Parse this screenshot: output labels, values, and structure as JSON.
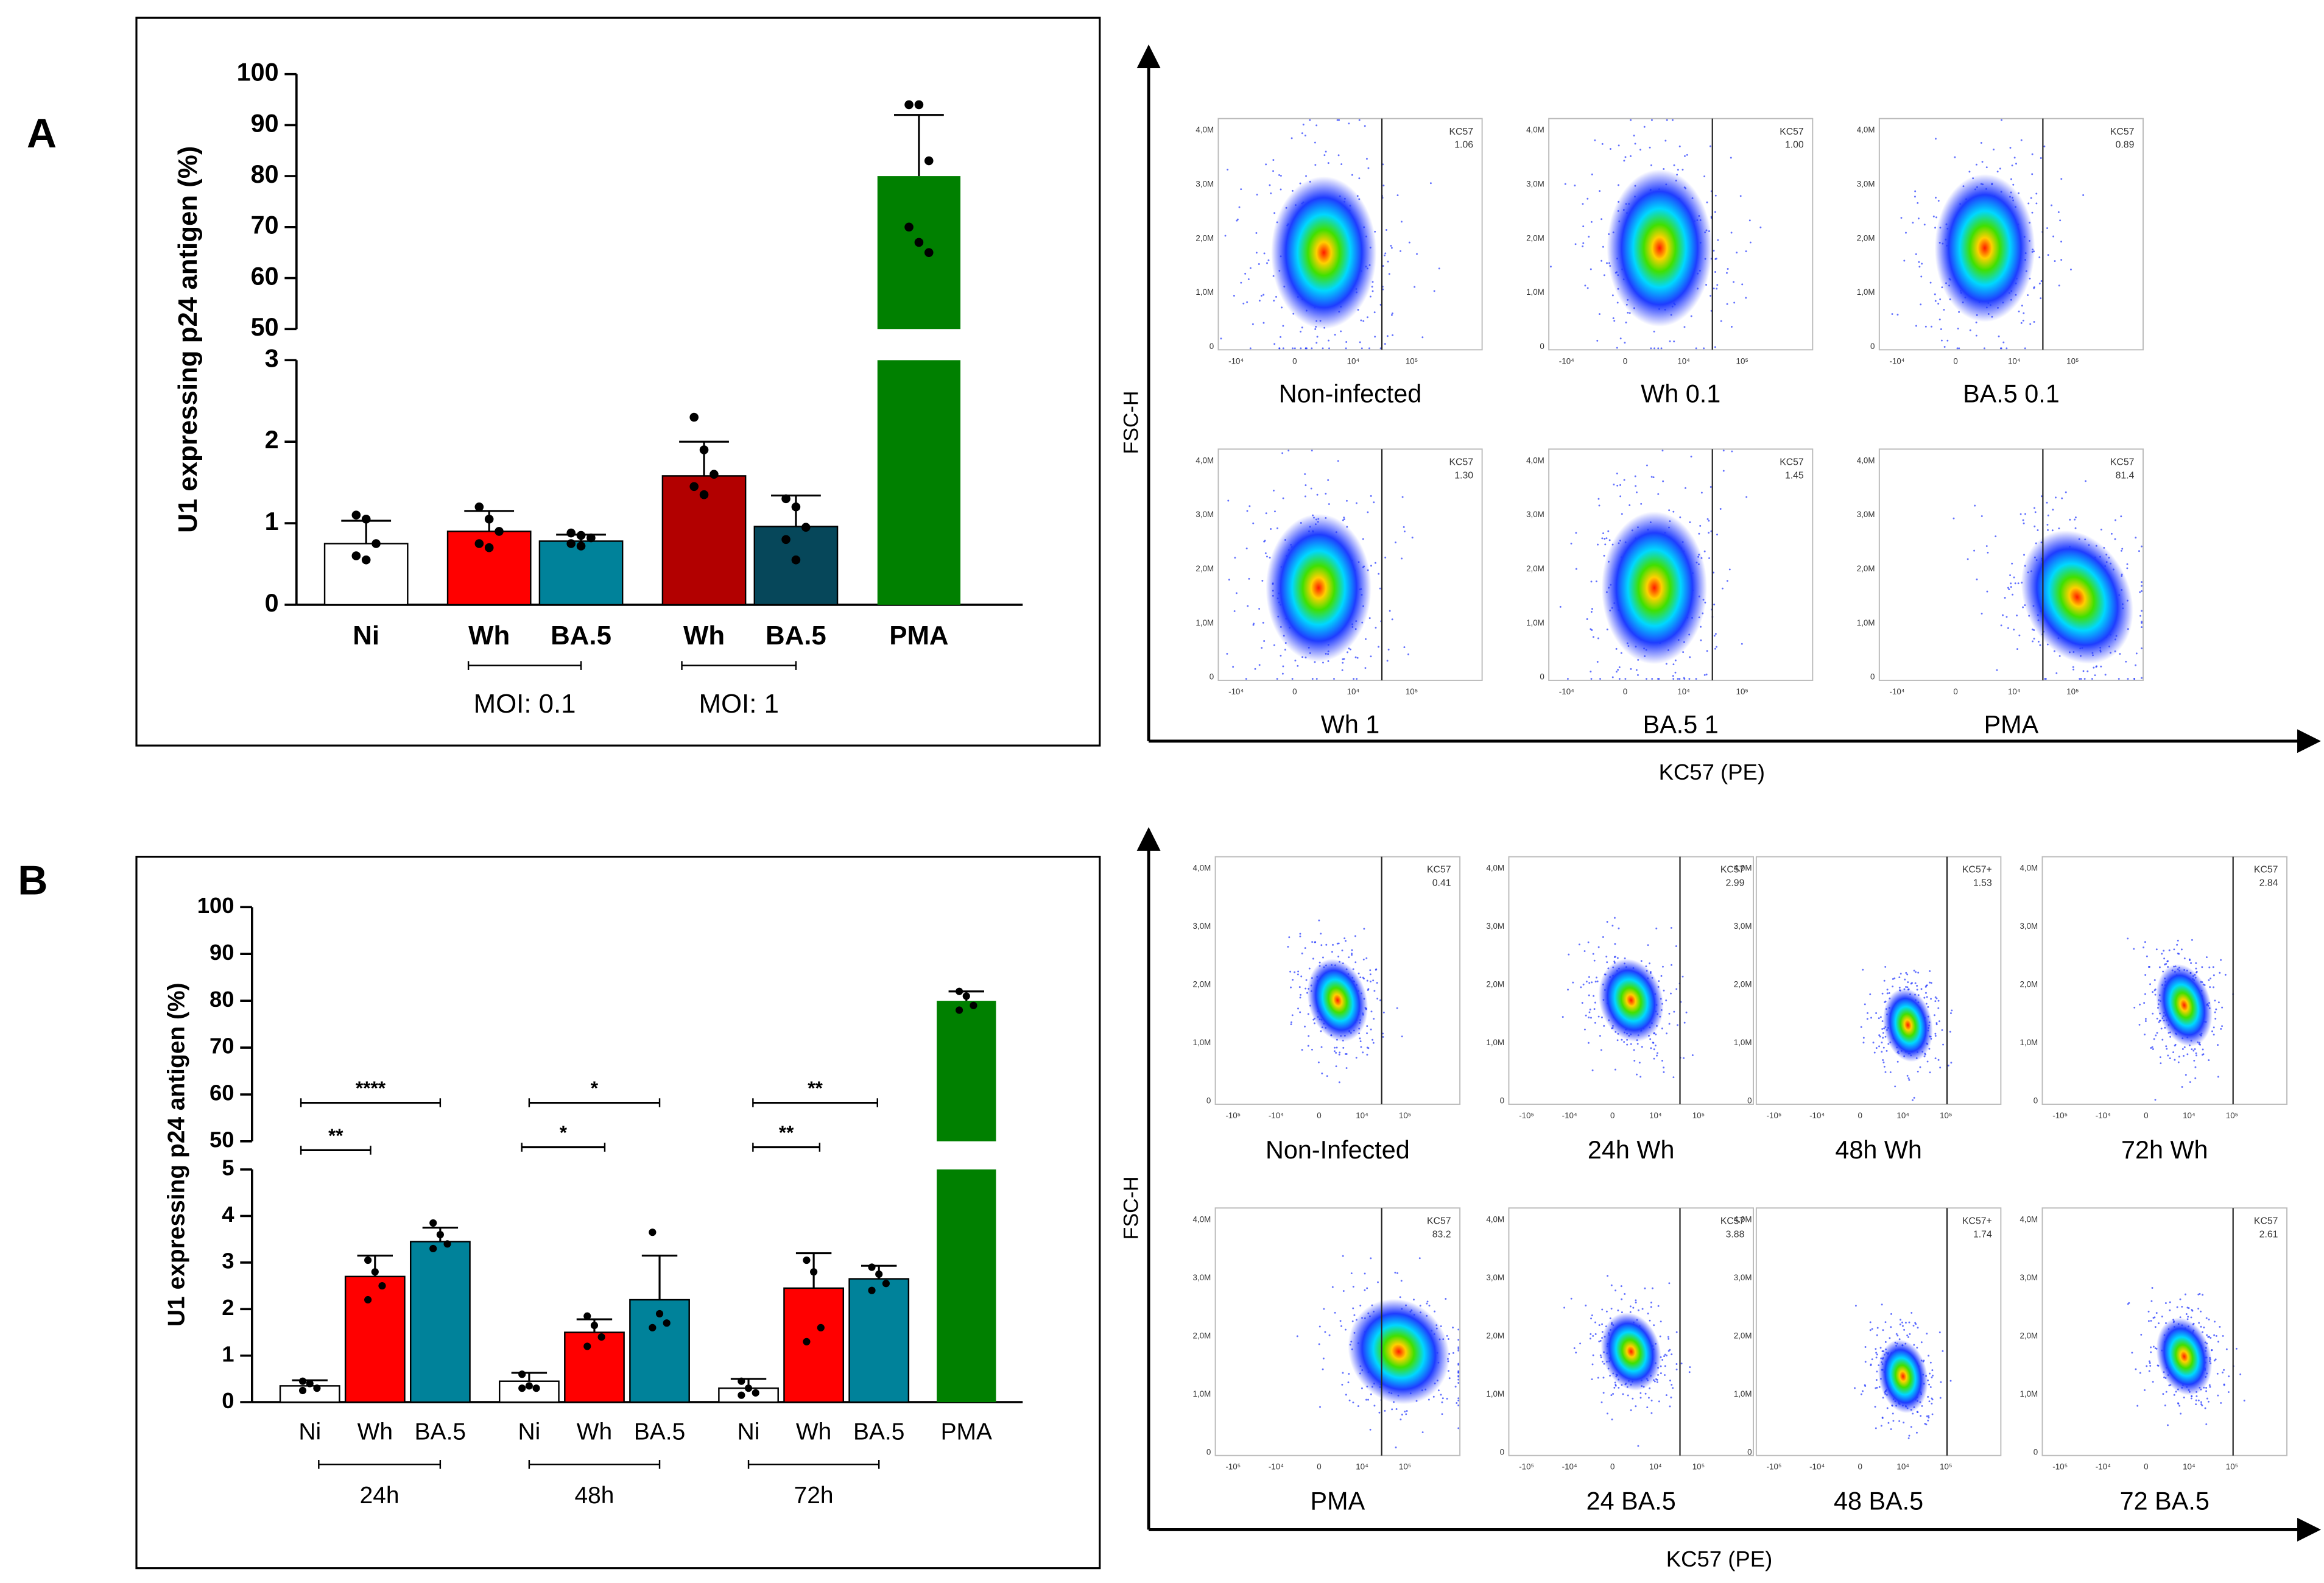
{
  "panel_labels": [
    "A",
    "B"
  ],
  "chart_data": [
    {
      "type": "bar",
      "y_label": "U1 expressing p24 antigen (%)",
      "categories": [
        "Ni",
        "Wh",
        "BA.5",
        "Wh",
        "BA.5",
        "PMA"
      ],
      "values": [
        0.75,
        0.9,
        0.78,
        1.58,
        0.96,
        80
      ],
      "errors": [
        0.28,
        0.25,
        0.08,
        0.42,
        0.38,
        12
      ],
      "points": [
        [
          1.1,
          1.05,
          0.75,
          0.6,
          0.55
        ],
        [
          1.2,
          1.05,
          0.9,
          0.75,
          0.7
        ],
        [
          0.88,
          0.85,
          0.82,
          0.75,
          0.72
        ],
        [
          2.3,
          1.9,
          1.6,
          1.45,
          1.35
        ],
        [
          1.3,
          1.2,
          0.95,
          0.8,
          0.55
        ],
        [
          94,
          94,
          83,
          70,
          67,
          65
        ]
      ],
      "colors": [
        "#ffffff",
        "#ff0000",
        "#00829a",
        "#b20000",
        "#06475a",
        "#008000"
      ],
      "groups": [
        "MOI: 0.1",
        "MOI: 1"
      ],
      "ylim_lower": [
        0,
        3
      ],
      "yticks_lower": [
        0,
        1,
        2,
        3
      ],
      "ylim_upper": [
        50,
        100
      ],
      "yticks_upper": [
        50,
        60,
        70,
        80,
        90,
        100
      ]
    },
    {
      "type": "bar",
      "y_label": "U1 expressing p24 antigen (%)",
      "categories": [
        "Ni",
        "Wh",
        "BA.5",
        "Ni",
        "Wh",
        "BA.5",
        "Ni",
        "Wh",
        "BA.5",
        "PMA"
      ],
      "values": [
        0.35,
        2.7,
        3.45,
        0.45,
        1.5,
        2.2,
        0.3,
        2.45,
        2.65,
        80
      ],
      "errors": [
        0.12,
        0.45,
        0.3,
        0.18,
        0.28,
        0.95,
        0.2,
        0.75,
        0.28,
        2
      ],
      "points": [
        [
          0.45,
          0.4,
          0.3,
          0.25
        ],
        [
          3.05,
          2.8,
          2.5,
          2.2
        ],
        [
          3.85,
          3.6,
          3.4,
          3.3
        ],
        [
          0.6,
          0.35,
          0.3,
          0.3
        ],
        [
          1.85,
          1.65,
          1.4,
          1.2
        ],
        [
          3.65,
          1.9,
          1.7,
          1.6
        ],
        [
          0.45,
          0.3,
          0.2,
          0.15
        ],
        [
          3.05,
          2.8,
          1.6,
          1.3
        ],
        [
          2.9,
          2.75,
          2.55,
          2.4
        ],
        [
          82,
          81,
          79,
          78
        ]
      ],
      "colors": [
        "#ffffff",
        "#ff0000",
        "#00829a",
        "#ffffff",
        "#ff0000",
        "#00829a",
        "#ffffff",
        "#ff0000",
        "#00829a",
        "#008000"
      ],
      "groups": [
        "24h",
        "48h",
        "72h"
      ],
      "significance": [
        "****",
        "**",
        "*",
        "*",
        "**",
        "**"
      ],
      "ylim_lower": [
        0,
        5
      ],
      "yticks_lower": [
        0,
        1,
        2,
        3,
        4,
        5
      ],
      "ylim_upper": [
        50,
        100
      ],
      "yticks_upper": [
        50,
        60,
        70,
        80,
        90,
        100
      ]
    }
  ],
  "flow_a": {
    "x_label": "KC57 (PE)",
    "y_label": "FSC-H",
    "yticks": [
      "4,0M",
      "3,0M",
      "2,0M",
      "1,0M",
      "0"
    ],
    "xticks": [
      "-10⁴",
      "0",
      "10⁴",
      "10⁵"
    ],
    "plots": [
      {
        "gate": "KC57",
        "value": "1.06",
        "label": "Non-infected"
      },
      {
        "gate": "KC57",
        "value": "1.00",
        "label": "Wh 0.1"
      },
      {
        "gate": "KC57",
        "value": "0.89",
        "label": "BA.5 0.1"
      },
      {
        "gate": "KC57",
        "value": "1.30",
        "label": "Wh 1"
      },
      {
        "gate": "KC57",
        "value": "1.45",
        "label": "BA.5 1"
      },
      {
        "gate": "KC57",
        "value": "81.4",
        "label": "PMA"
      }
    ]
  },
  "flow_b": {
    "x_label": "KC57 (PE)",
    "y_label": "FSC-H",
    "yticks": [
      "4,0M",
      "3,0M",
      "2,0M",
      "1,0M",
      "0"
    ],
    "xticks": [
      "-10⁵",
      "-10⁴",
      "0",
      "10⁴",
      "10⁵"
    ],
    "plots": [
      {
        "gate": "KC57",
        "value": "0.41",
        "label": "Non-Infected"
      },
      {
        "gate": "KC57",
        "value": "2.99",
        "label": "24h Wh"
      },
      {
        "gate": "KC57+",
        "value": "1.53",
        "label": "48h Wh"
      },
      {
        "gate": "KC57",
        "value": "2.84",
        "label": "72h Wh"
      },
      {
        "gate": "KC57",
        "value": "83.2",
        "label": "PMA"
      },
      {
        "gate": "KC57",
        "value": "3.88",
        "label": "24 BA.5"
      },
      {
        "gate": "KC57+",
        "value": "1.74",
        "label": "48 BA.5"
      },
      {
        "gate": "KC57",
        "value": "2.61",
        "label": "72 BA.5"
      }
    ]
  }
}
